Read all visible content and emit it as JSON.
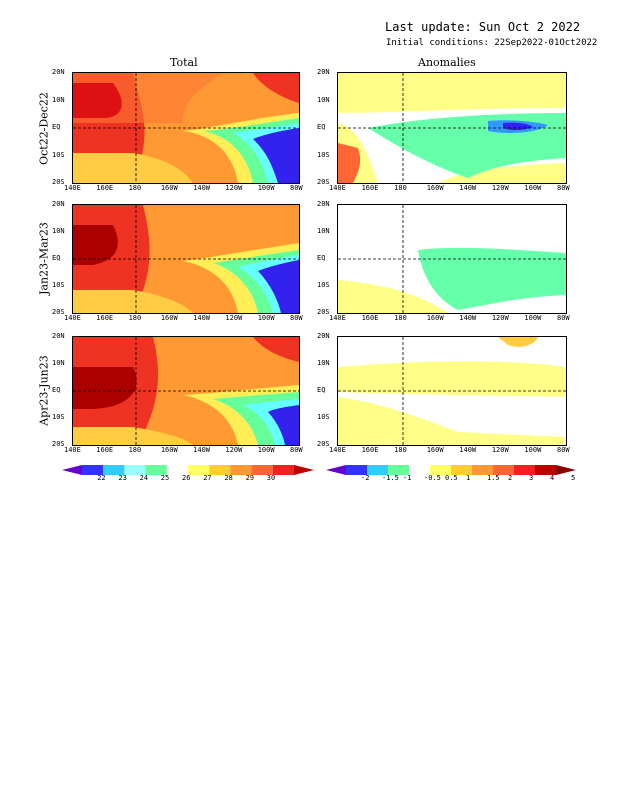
{
  "header": {
    "last_update": "Last update: Sun Oct 2 2022",
    "initial_conditions": "Initial conditions: 22Sep2022-01Oct2022"
  },
  "columns": {
    "total": "Total",
    "anomalies": "Anomalies"
  },
  "rows": [
    {
      "label": "Oct22-Dec22"
    },
    {
      "label": "Jan23-Mar23"
    },
    {
      "label": "Apr23-Jun23"
    }
  ],
  "axes": {
    "lat_ticks": [
      "20N",
      "10N",
      "EQ",
      "10S",
      "20S"
    ],
    "lon_ticks": [
      "140E",
      "160E",
      "180",
      "160W",
      "140W",
      "120W",
      "100W",
      "80W"
    ]
  },
  "colorbars": {
    "total": {
      "labels": [
        "22",
        "23",
        "24",
        "25",
        "26",
        "27",
        "28",
        "29",
        "30"
      ],
      "colors": [
        "#6600cc",
        "#3333ff",
        "#33ccff",
        "#99ffff",
        "#66ff99",
        "#ffffff",
        "#ffff66",
        "#ffcc33",
        "#ff9933",
        "#ff6633",
        "#ee2222",
        "#bb0000"
      ]
    },
    "anomalies": {
      "labels": [
        "-2",
        "-1.5",
        "-1",
        "-0.5",
        "0.5",
        "1",
        "1.5",
        "2",
        "3",
        "4",
        "5"
      ],
      "colors": [
        "#6600cc",
        "#3333ff",
        "#33ccff",
        "#66ff99",
        "#ffffff",
        "#ffff66",
        "#ffcc33",
        "#ff9933",
        "#ff6633",
        "#ee2222",
        "#bb0000",
        "#880000"
      ]
    }
  },
  "colors": {
    "warm_pool": "#cc1111",
    "cold_tongue": "#3311cc",
    "anom_cool": "#66ffaa",
    "anom_warm": "#ffff88"
  }
}
